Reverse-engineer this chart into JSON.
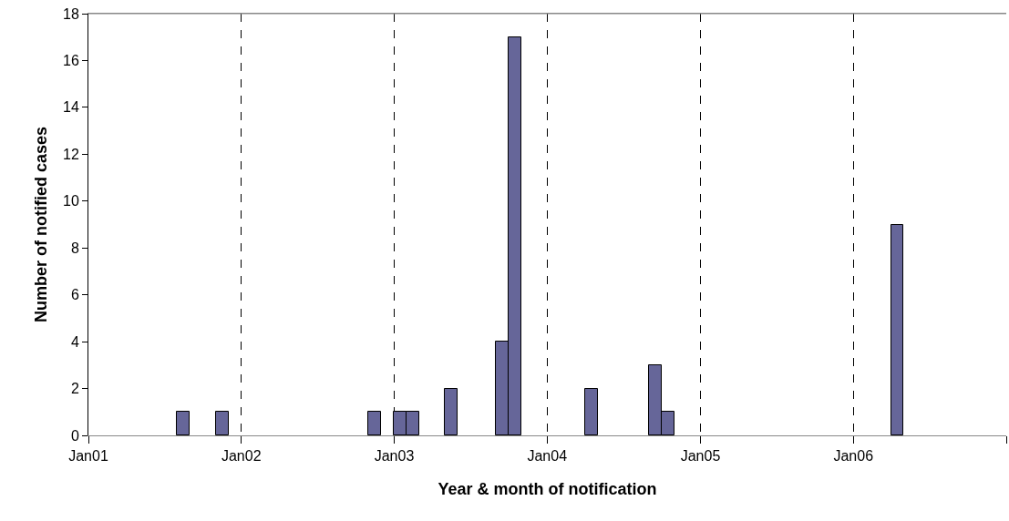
{
  "chart_data": {
    "type": "bar",
    "xlabel": "Year & month of notification",
    "ylabel": "Number of notified cases",
    "x": [
      "2001-08-16",
      "2001-11-16",
      "2002-11-16",
      "2003-01-16",
      "2003-02-15",
      "2003-05-16",
      "2003-09-16",
      "2003-10-16",
      "2004-04-16",
      "2004-09-16",
      "2004-10-16",
      "2006-04-16"
    ],
    "values": [
      1,
      1,
      1,
      1,
      1,
      2,
      4,
      17,
      2,
      3,
      1,
      9
    ],
    "color": "#666699",
    "xlim": [
      "2001-01",
      "2007-01"
    ],
    "xticks": [
      {
        "value": "2001-01",
        "label": "Jan01"
      },
      {
        "value": "2002-01",
        "label": "Jan02"
      },
      {
        "value": "2003-01",
        "label": "Jan03"
      },
      {
        "value": "2004-01",
        "label": "Jan04"
      },
      {
        "value": "2005-01",
        "label": "Jan05"
      },
      {
        "value": "2006-01",
        "label": "Jan06"
      },
      {
        "value": "2007-01",
        "label": null
      }
    ],
    "ylim": [
      0,
      18
    ],
    "yticks": [
      0,
      2,
      4,
      6,
      8,
      10,
      12,
      14,
      16,
      18
    ],
    "grid": "x"
  }
}
